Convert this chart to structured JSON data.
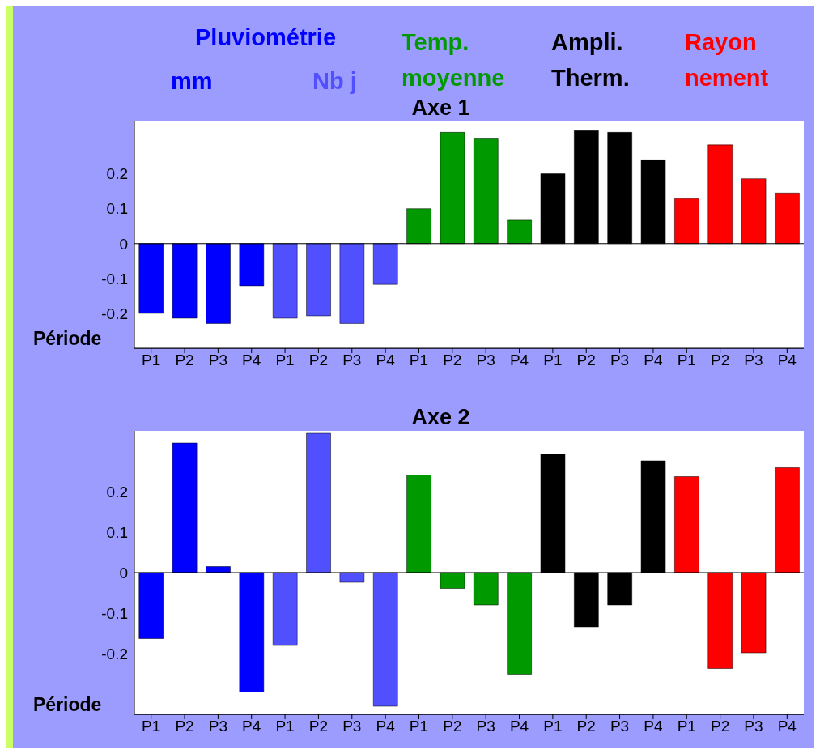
{
  "chart_data": [
    {
      "type": "bar",
      "title": "Axe 1",
      "xlabel": "Période",
      "legend_title": "Pluviométrie",
      "legend": "top",
      "grid": "y",
      "categories": [
        "P1",
        "P2",
        "P3",
        "P4",
        "P1",
        "P2",
        "P3",
        "P4",
        "P1",
        "P2",
        "P3",
        "P4",
        "P1",
        "P2",
        "P3",
        "P4",
        "P1",
        "P2",
        "P3",
        "P4"
      ],
      "ylim": [
        -0.3,
        0.35
      ],
      "yticks": [
        -0.2,
        -0.1,
        0,
        0.1,
        0.2
      ],
      "series": [
        {
          "name": "mm",
          "color": "#0000ff",
          "values": [
            -0.2,
            -0.214,
            -0.229,
            -0.121,
            null,
            null,
            null,
            null,
            null,
            null,
            null,
            null,
            null,
            null,
            null,
            null,
            null,
            null,
            null,
            null
          ]
        },
        {
          "name": "Nb j",
          "color": "#5050ff",
          "values": [
            null,
            null,
            null,
            null,
            -0.214,
            -0.207,
            -0.229,
            -0.117,
            null,
            null,
            null,
            null,
            null,
            null,
            null,
            null,
            null,
            null,
            null,
            null
          ]
        },
        {
          "name": "Temp. moyenne",
          "color": "#009900",
          "values": [
            null,
            null,
            null,
            null,
            null,
            null,
            null,
            null,
            0.1,
            0.319,
            0.3,
            0.067,
            null,
            null,
            null,
            null,
            null,
            null,
            null,
            null
          ]
        },
        {
          "name": "Ampli. Therm.",
          "color": "#000000",
          "values": [
            null,
            null,
            null,
            null,
            null,
            null,
            null,
            null,
            null,
            null,
            null,
            null,
            0.2,
            0.324,
            0.319,
            0.24,
            null,
            null,
            null,
            null
          ]
        },
        {
          "name": "Rayon nement",
          "color": "#ff0000",
          "values": [
            null,
            null,
            null,
            null,
            null,
            null,
            null,
            null,
            null,
            null,
            null,
            null,
            null,
            null,
            null,
            null,
            0.129,
            0.283,
            0.186,
            0.145
          ]
        }
      ]
    },
    {
      "type": "bar",
      "title": "Axe 2",
      "xlabel": "Période",
      "grid": "y",
      "categories": [
        "P1",
        "P2",
        "P3",
        "P4",
        "P1",
        "P2",
        "P3",
        "P4",
        "P1",
        "P2",
        "P3",
        "P4",
        "P1",
        "P2",
        "P3",
        "P4",
        "P1",
        "P2",
        "P3",
        "P4"
      ],
      "ylim": [
        -0.35,
        0.35
      ],
      "yticks": [
        -0.2,
        -0.1,
        0,
        0.1,
        0.2
      ],
      "series": [
        {
          "color": "#0000ff",
          "values": [
            -0.163,
            0.32,
            0.015,
            -0.295,
            null,
            null,
            null,
            null,
            null,
            null,
            null,
            null,
            null,
            null,
            null,
            null,
            null,
            null,
            null,
            null
          ]
        },
        {
          "color": "#5050ff",
          "values": [
            null,
            null,
            null,
            null,
            -0.18,
            0.344,
            -0.024,
            -0.33,
            null,
            null,
            null,
            null,
            null,
            null,
            null,
            null,
            null,
            null,
            null,
            null
          ]
        },
        {
          "color": "#009900",
          "values": [
            null,
            null,
            null,
            null,
            null,
            null,
            null,
            null,
            0.241,
            -0.039,
            -0.08,
            -0.251,
            null,
            null,
            null,
            null,
            null,
            null,
            null,
            null
          ]
        },
        {
          "color": "#000000",
          "values": [
            null,
            null,
            null,
            null,
            null,
            null,
            null,
            null,
            null,
            null,
            null,
            null,
            0.293,
            -0.134,
            -0.08,
            0.276,
            null,
            null,
            null,
            null
          ]
        },
        {
          "color": "#ff0000",
          "values": [
            null,
            null,
            null,
            null,
            null,
            null,
            null,
            null,
            null,
            null,
            null,
            null,
            null,
            null,
            null,
            null,
            0.237,
            -0.237,
            -0.198,
            0.259
          ]
        }
      ]
    }
  ]
}
